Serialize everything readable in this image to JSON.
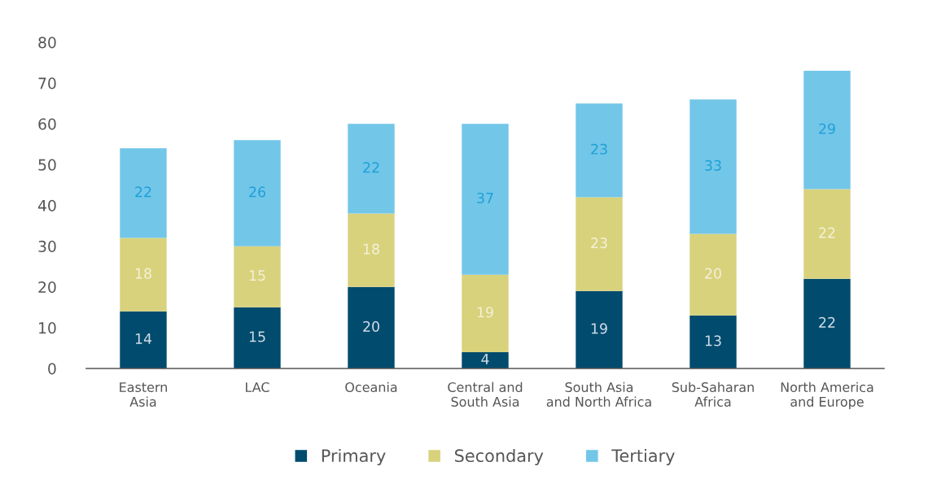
{
  "chart_data": {
    "type": "bar",
    "stacked": true,
    "categories": [
      "Eastern\nAsia",
      "LAC",
      "Oceania",
      "Central and\nSouth Asia",
      "South Asia\nand North Africa",
      "Sub-Saharan\nAfrica",
      "North America\nand Europe"
    ],
    "series": [
      {
        "name": "Primary",
        "color": "#004b6e",
        "values": [
          14,
          15,
          20,
          4,
          19,
          13,
          22
        ]
      },
      {
        "name": "Secondary",
        "color": "#d8d27d",
        "values": [
          18,
          15,
          18,
          19,
          23,
          20,
          22
        ]
      },
      {
        "name": "Tertiary",
        "color": "#72c6e8",
        "values": [
          22,
          26,
          22,
          37,
          23,
          33,
          29
        ]
      }
    ],
    "ylim": [
      0,
      80
    ],
    "yticks": [
      0,
      10,
      20,
      30,
      40,
      50,
      60,
      70,
      80
    ],
    "data_labels": true,
    "grid": false,
    "legend": "bottom"
  }
}
